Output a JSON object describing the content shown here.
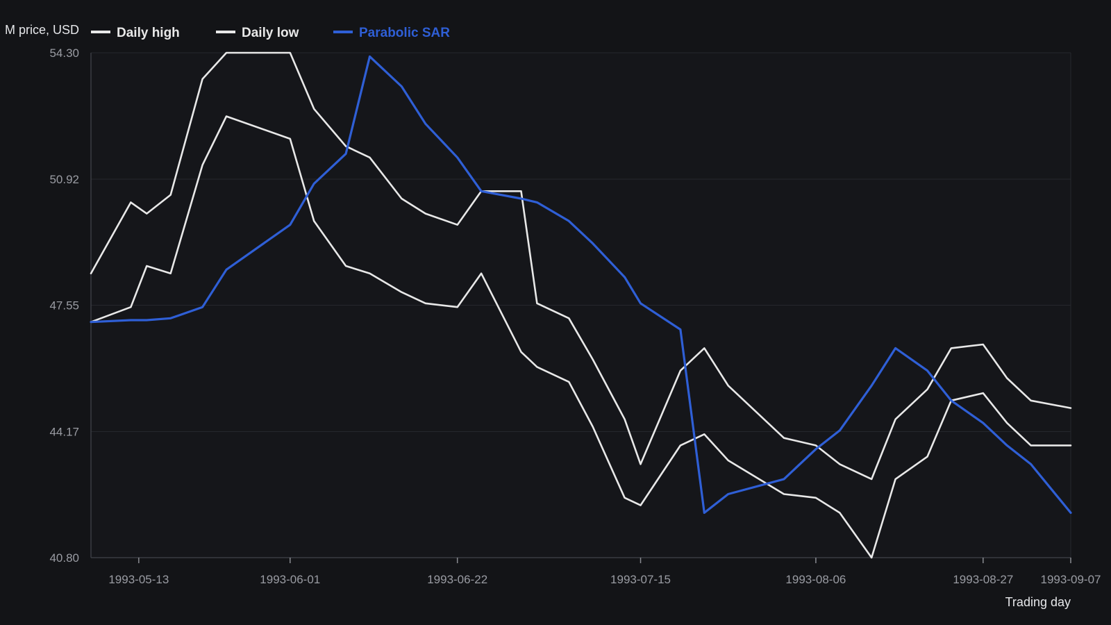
{
  "chart_data": {
    "type": "line",
    "title": "",
    "xlabel": "Trading day",
    "ylabel": "M price, USD",
    "ylim": [
      40.8,
      54.3
    ],
    "y_ticks": [
      "54.30",
      "50.92",
      "47.55",
      "44.17",
      "40.80"
    ],
    "x_tick_labels": [
      "1993-05-13",
      "1993-06-01",
      "1993-06-22",
      "1993-07-15",
      "1993-08-06",
      "1993-08-27",
      "1993-09-07"
    ],
    "x": [
      "1993-05-07",
      "1993-05-12",
      "1993-05-14",
      "1993-05-17",
      "1993-05-21",
      "1993-05-24",
      "1993-06-01",
      "1993-06-04",
      "1993-06-08",
      "1993-06-11",
      "1993-06-15",
      "1993-06-18",
      "1993-06-22",
      "1993-06-25",
      "1993-06-30",
      "1993-07-02",
      "1993-07-06",
      "1993-07-09",
      "1993-07-13",
      "1993-07-15",
      "1993-07-20",
      "1993-07-23",
      "1993-07-26",
      "1993-08-02",
      "1993-08-06",
      "1993-08-09",
      "1993-08-13",
      "1993-08-16",
      "1993-08-20",
      "1993-08-23",
      "1993-08-27",
      "1993-08-30",
      "1993-09-02",
      "1993-09-07"
    ],
    "grid": true,
    "legend_position": "top-left",
    "colors": {
      "background": "#131417",
      "plot_background": "#15161a",
      "grid": "#26282d",
      "high": "#e8e8e8",
      "low": "#e8e8e8",
      "sar": "#2f5fd6",
      "tick_text": "#9a9ca3"
    },
    "series": [
      {
        "name": "Daily high",
        "values": [
          48.4,
          50.3,
          50.0,
          50.5,
          53.6,
          54.3,
          54.3,
          52.8,
          51.8,
          51.5,
          50.4,
          50.0,
          49.7,
          50.6,
          50.6,
          47.6,
          47.2,
          46.1,
          44.5,
          43.3,
          45.8,
          46.4,
          45.4,
          44.0,
          43.8,
          43.3,
          42.9,
          44.5,
          45.3,
          46.4,
          46.5,
          45.6,
          45.0,
          44.8
        ]
      },
      {
        "name": "Daily low",
        "values": [
          47.1,
          47.5,
          48.6,
          48.4,
          51.3,
          52.6,
          52.0,
          49.8,
          48.6,
          48.4,
          47.9,
          47.6,
          47.5,
          48.4,
          46.3,
          45.9,
          45.5,
          44.3,
          42.4,
          42.2,
          43.8,
          44.1,
          43.4,
          42.5,
          42.4,
          42.0,
          40.8,
          42.9,
          43.5,
          45.0,
          45.2,
          44.4,
          43.8,
          43.8
        ]
      },
      {
        "name": "Parabolic SAR",
        "values": [
          47.1,
          47.15,
          47.15,
          47.2,
          47.5,
          48.5,
          49.7,
          50.8,
          51.6,
          54.2,
          53.4,
          52.4,
          51.5,
          50.6,
          50.4,
          50.3,
          49.8,
          49.2,
          48.3,
          47.6,
          46.9,
          42.0,
          42.5,
          42.9,
          43.7,
          44.2,
          45.4,
          46.4,
          45.8,
          45.0,
          44.4,
          43.8,
          43.3,
          42.0
        ]
      }
    ]
  }
}
